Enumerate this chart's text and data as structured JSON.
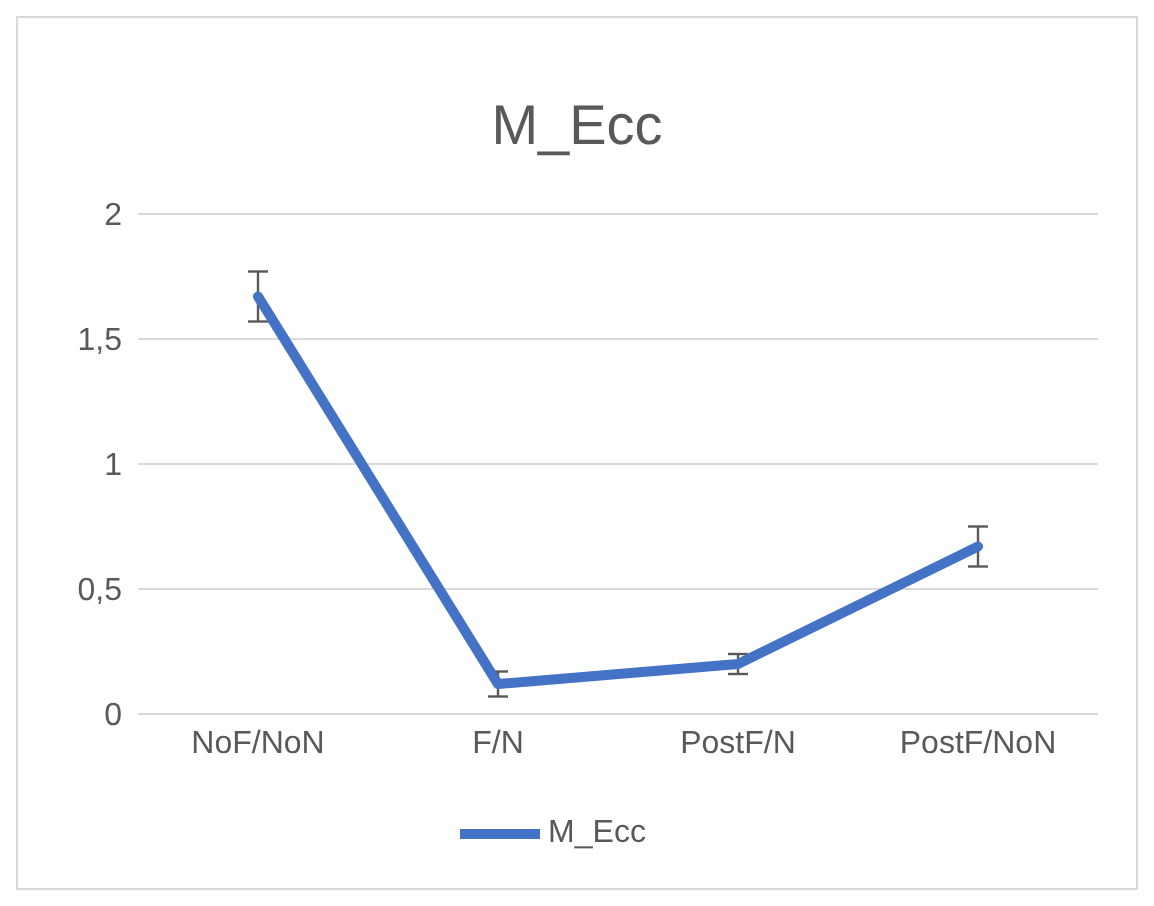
{
  "chart_data": {
    "type": "line",
    "title": "M_Ecc",
    "categories": [
      "NoF/NoN",
      "F/N",
      "PostF/N",
      "PostF/NoN"
    ],
    "series": [
      {
        "name": "M_Ecc",
        "color": "#4472c4",
        "values": [
          1.67,
          0.12,
          0.2,
          0.67
        ],
        "errors": [
          0.1,
          0.05,
          0.04,
          0.08
        ]
      }
    ],
    "ylim": [
      0,
      2
    ],
    "yticks": [
      0,
      {
        "value": 0.5,
        "label": "0,5"
      },
      1,
      {
        "value": 1.5,
        "label": "1,5"
      },
      2
    ],
    "grid": "y",
    "legend": "bottom",
    "marker": "none",
    "line_style": "solid"
  }
}
